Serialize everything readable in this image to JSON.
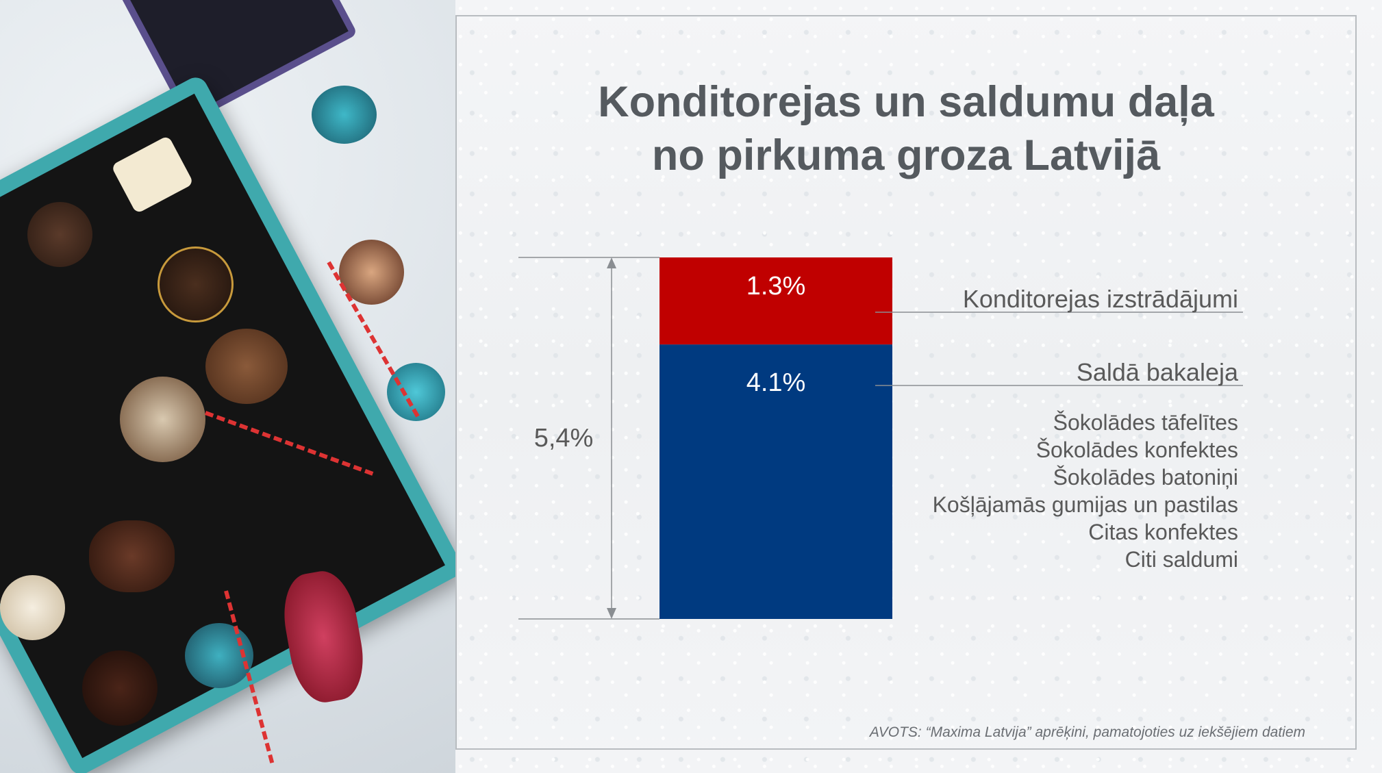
{
  "title_lines": [
    "Konditorejas un saldumu daļa",
    "no pirkuma groza Latvijā"
  ],
  "source": "AVOTS: “Maxima Latvija” aprēķini, pamatojoties uz iekšējiem datiem",
  "colors": {
    "red": "#c00000",
    "blue": "#003a80",
    "text": "#595959",
    "title": "#555a5f"
  },
  "photo": {
    "icon": "chocolate-box-photo"
  },
  "chart_data": {
    "type": "bar",
    "stacked": true,
    "categories": [
      ""
    ],
    "series": [
      {
        "name": "Saldā bakaleja",
        "values": [
          4.1
        ],
        "label": "4.1%",
        "color": "#003a80"
      },
      {
        "name": "Konditorejas izstrādājumi",
        "values": [
          1.3
        ],
        "label": "1.3%",
        "color": "#c00000"
      }
    ],
    "total": 5.4,
    "total_label": "5,4%",
    "ylim": [
      0,
      5.4
    ],
    "sub_items": [
      "Šokolādes tāfelītes",
      "Šokolādes konfektes",
      "Šokolādes batoniņi",
      "Košļājamās gumijas un pastilas",
      "Citas konfektes",
      "Citi saldumi"
    ],
    "grid": false
  }
}
